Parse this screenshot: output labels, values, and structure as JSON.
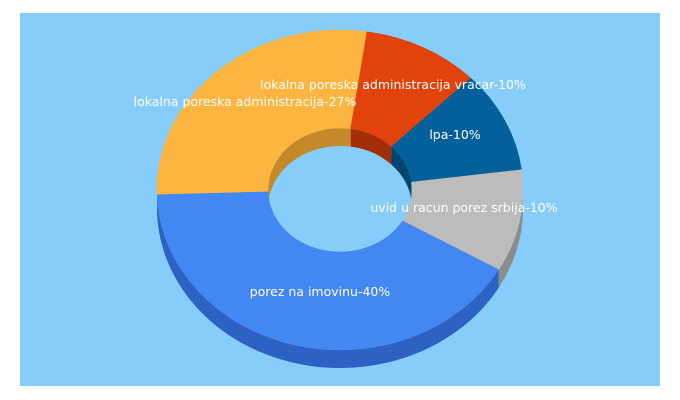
{
  "chart_data": {
    "type": "pie",
    "variant": "donut-3d",
    "title": "",
    "legend": "none",
    "slices": [
      {
        "label": "porez na imovinu-40%",
        "value": 40,
        "color": "#4287f2",
        "side_color": "#2e62c2"
      },
      {
        "label": "lokalna poreska administracija-27%",
        "value": 27,
        "color": "#fbb540",
        "side_color": "#c48a2a"
      },
      {
        "label": "lokalna poreska administracija vracar-10%",
        "value": 10,
        "color": "#e2420b",
        "side_color": "#a32f08"
      },
      {
        "label": "lpa-10%",
        "value": 10,
        "color": "#04609a",
        "side_color": "#034570"
      },
      {
        "label": "uvid u racun porez srbija-10%",
        "value": 10,
        "color": "#bcbcbc",
        "side_color": "#8c8c8c"
      }
    ]
  },
  "colors": {
    "background": "#87cdfa"
  }
}
